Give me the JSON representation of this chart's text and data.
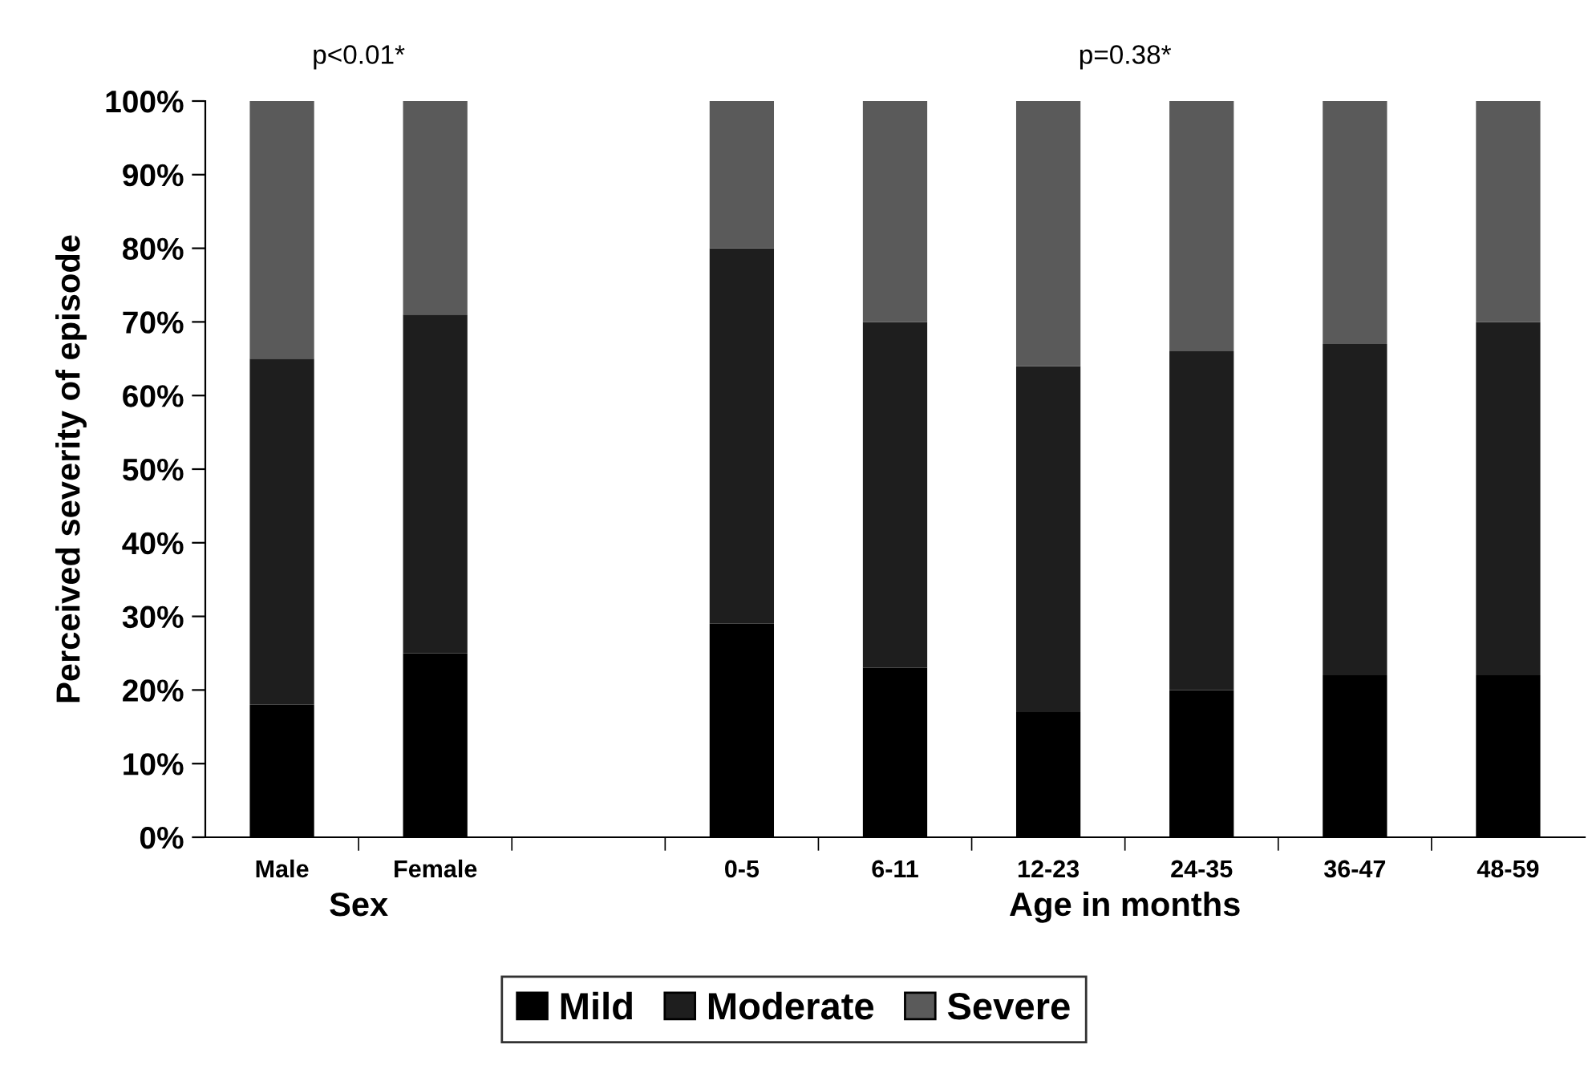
{
  "chart_data": {
    "type": "bar",
    "stacked": true,
    "ylabel": "Perceived severity of episode",
    "categories": [
      "Male",
      "Female",
      null,
      "0-5",
      "6-11",
      "12-23",
      "24-35",
      "36-47",
      "48-59"
    ],
    "series": [
      {
        "name": "Mild",
        "color": "#000000",
        "values": [
          18,
          25,
          null,
          29,
          23,
          17,
          20,
          22,
          22
        ]
      },
      {
        "name": "Moderate",
        "color": "#1e1e1e",
        "values": [
          47,
          46,
          null,
          51,
          47,
          47,
          46,
          45,
          48
        ]
      },
      {
        "name": "Severe",
        "color": "#5a5a5a",
        "values": [
          35,
          29,
          null,
          20,
          30,
          36,
          34,
          33,
          30
        ]
      }
    ],
    "ylim": [
      0,
      100
    ],
    "yticks": [
      {
        "value": 0,
        "label": "0%"
      },
      {
        "value": 10,
        "label": "10%"
      },
      {
        "value": 20,
        "label": "20%"
      },
      {
        "value": 30,
        "label": "30%"
      },
      {
        "value": 40,
        "label": "40%"
      },
      {
        "value": 50,
        "label": "50%"
      },
      {
        "value": 60,
        "label": "60%"
      },
      {
        "value": 70,
        "label": "70%"
      },
      {
        "value": 80,
        "label": "80%"
      },
      {
        "value": 90,
        "label": "90%"
      },
      {
        "value": 100,
        "label": "100%"
      }
    ],
    "annotations": [
      "p<0.01*",
      "p=0.38*",
      "Sex",
      "Age in months"
    ],
    "legend": "bottom",
    "grid": false
  }
}
